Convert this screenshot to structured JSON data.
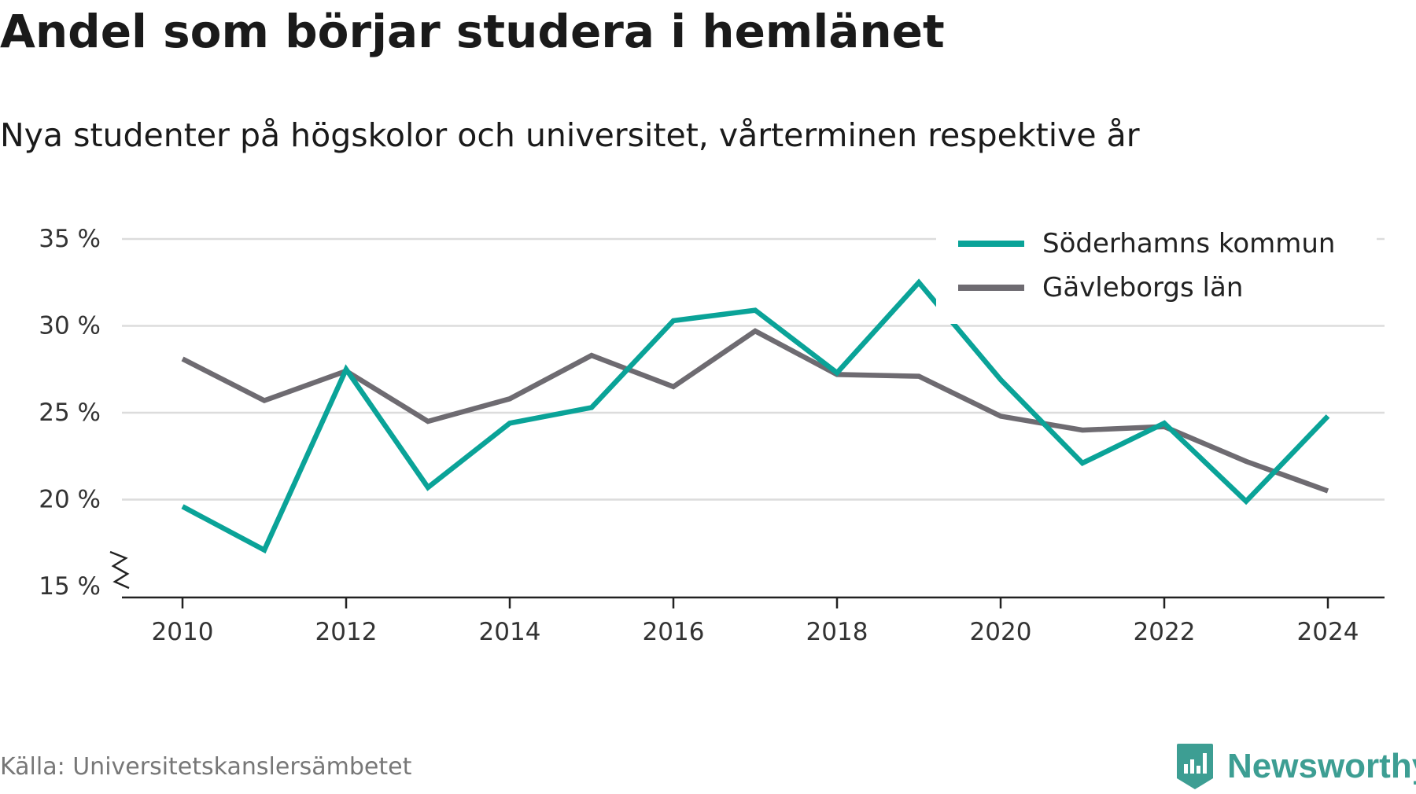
{
  "title": "Andel som börjar studera i hemlänet",
  "subtitle": "Nya studenter på högskolor och universitet, vårterminen respektive år",
  "source": "Källa: Universitetskanslersämbetet",
  "brand": {
    "name": "Newsworthy",
    "icon": "newsworthy-logo-icon",
    "color": "#3d9e93"
  },
  "chart_data": {
    "type": "line",
    "x": [
      2010,
      2011,
      2012,
      2013,
      2014,
      2015,
      2016,
      2017,
      2018,
      2019,
      2020,
      2021,
      2022,
      2023,
      2024
    ],
    "x_ticks": [
      "2010",
      "2012",
      "2014",
      "2016",
      "2018",
      "2020",
      "2022",
      "2024"
    ],
    "y_ticks": [
      "15 %",
      "20 %",
      "25 %",
      "30 %",
      "35 %"
    ],
    "ylim": [
      15,
      35
    ],
    "y_axis_break": true,
    "grid": true,
    "legend_position": "top-right",
    "series": [
      {
        "name": "Söderhamns kommun",
        "color": "#0aa398",
        "values": [
          19.6,
          17.1,
          27.5,
          20.7,
          24.4,
          25.3,
          30.3,
          30.9,
          27.3,
          32.5,
          26.9,
          22.1,
          24.4,
          19.9,
          24.8
        ]
      },
      {
        "name": "Gävleborgs län",
        "color": "#6e6b71",
        "values": [
          28.1,
          25.7,
          27.4,
          24.5,
          25.8,
          28.3,
          26.5,
          29.7,
          27.2,
          27.1,
          24.8,
          24.0,
          24.2,
          22.2,
          20.5
        ]
      }
    ]
  }
}
